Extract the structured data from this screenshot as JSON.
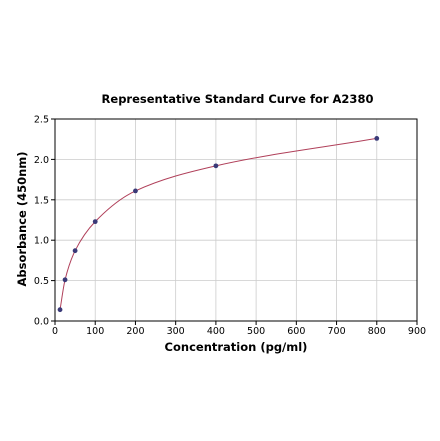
{
  "chart_data": {
    "type": "scatter",
    "title": "Representative Standard Curve for A2380",
    "xlabel": "Concentration (pg/ml)",
    "ylabel": "Absorbance (450nm)",
    "xlim": [
      0,
      900
    ],
    "ylim": [
      0.0,
      2.5
    ],
    "xticks": [
      "0",
      "100",
      "200",
      "300",
      "400",
      "500",
      "600",
      "700",
      "800",
      "900"
    ],
    "yticks": [
      "0.0",
      "0.5",
      "1.0",
      "1.5",
      "2.0",
      "2.5"
    ],
    "grid": true,
    "legend": "none",
    "colors": {
      "points": "#3a3a78",
      "curve": "#b0405a",
      "grid": "#cccccc",
      "axis": "#000000"
    },
    "series": [
      {
        "x": [
          12.5,
          25,
          50,
          100,
          200,
          400,
          800
        ],
        "y": [
          0.14,
          0.51,
          0.87,
          1.23,
          1.61,
          1.92,
          2.26
        ]
      }
    ],
    "fit_curve": true
  }
}
